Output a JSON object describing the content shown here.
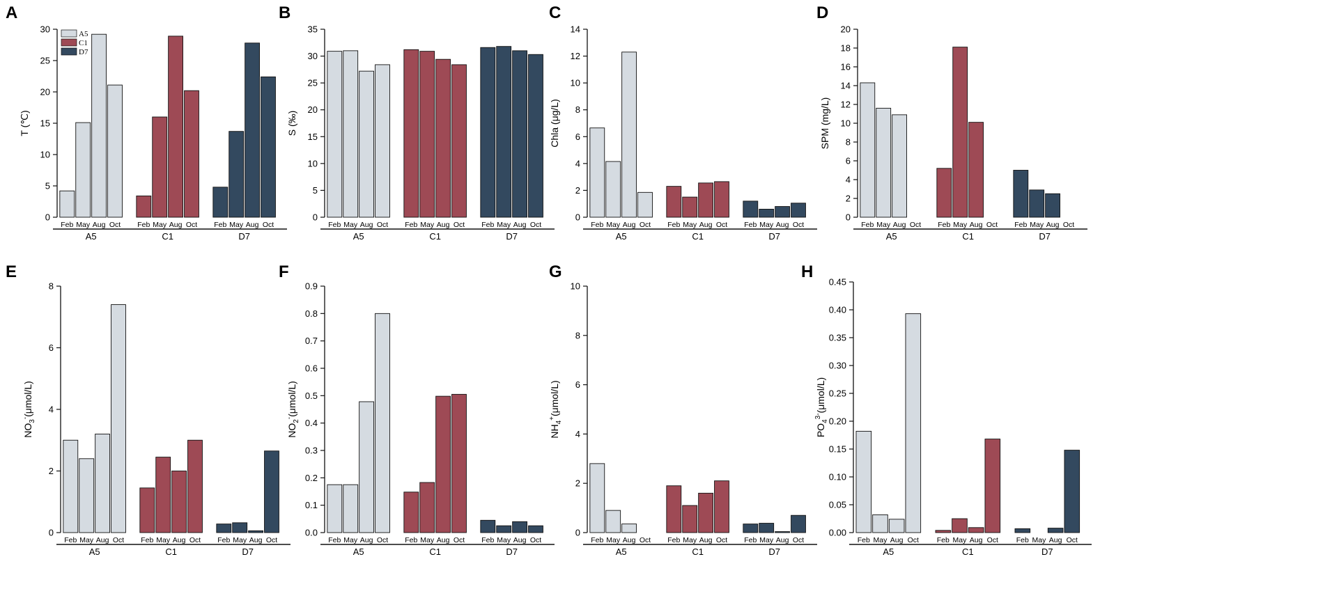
{
  "colors": {
    "A5": "#d5dbe1",
    "C1": "#9e4a55",
    "D7": "#33495f",
    "stroke": "#111111"
  },
  "legend": [
    "A5",
    "C1",
    "D7"
  ],
  "chart_data": [
    {
      "panel": "A",
      "type": "bar",
      "ylabel": "T (℃)",
      "ylim": [
        0,
        30
      ],
      "yticks": [
        "0",
        "5",
        "10",
        "15",
        "20",
        "25",
        "30"
      ],
      "tickvals": [
        0,
        5,
        10,
        15,
        20,
        25,
        30
      ],
      "categories": [
        "Feb",
        "May",
        "Aug",
        "Oct"
      ],
      "groups": [
        "A5",
        "C1",
        "D7"
      ],
      "legend": true,
      "series": [
        {
          "name": "A5",
          "values": [
            4.2,
            15.1,
            29.2,
            21.1
          ]
        },
        {
          "name": "C1",
          "values": [
            3.4,
            16.0,
            28.9,
            20.2
          ]
        },
        {
          "name": "D7",
          "values": [
            4.8,
            13.7,
            27.8,
            22.4
          ]
        }
      ]
    },
    {
      "panel": "B",
      "type": "bar",
      "ylabel": "S (‰)",
      "ylim": [
        0,
        35
      ],
      "yticks": [
        "0",
        "5",
        "10",
        "15",
        "20",
        "25",
        "30",
        "35"
      ],
      "tickvals": [
        0,
        5,
        10,
        15,
        20,
        25,
        30,
        35
      ],
      "categories": [
        "Feb",
        "May",
        "Aug",
        "Oct"
      ],
      "groups": [
        "A5",
        "C1",
        "D7"
      ],
      "series": [
        {
          "name": "A5",
          "values": [
            30.9,
            31.0,
            27.2,
            28.4
          ]
        },
        {
          "name": "C1",
          "values": [
            31.2,
            30.9,
            29.4,
            28.4
          ]
        },
        {
          "name": "D7",
          "values": [
            31.6,
            31.8,
            31.0,
            30.3
          ]
        }
      ]
    },
    {
      "panel": "C",
      "type": "bar",
      "ylabel": "Chla (μg/L)",
      "ylim": [
        0,
        14
      ],
      "yticks": [
        "0",
        "2",
        "4",
        "6",
        "8",
        "10",
        "12",
        "14"
      ],
      "tickvals": [
        0,
        2,
        4,
        6,
        8,
        10,
        12,
        14
      ],
      "categories": [
        "Feb",
        "May",
        "Aug",
        "Oct"
      ],
      "groups": [
        "A5",
        "C1",
        "D7"
      ],
      "series": [
        {
          "name": "A5",
          "values": [
            6.65,
            4.15,
            12.3,
            1.85
          ]
        },
        {
          "name": "C1",
          "values": [
            2.3,
            1.5,
            2.55,
            2.65
          ]
        },
        {
          "name": "D7",
          "values": [
            1.2,
            0.6,
            0.8,
            1.05
          ]
        }
      ]
    },
    {
      "panel": "D",
      "type": "bar",
      "ylabel": "SPM (mg/L)",
      "ylim": [
        0,
        20
      ],
      "yticks": [
        "0",
        "2",
        "4",
        "6",
        "8",
        "10",
        "12",
        "14",
        "16",
        "18",
        "20"
      ],
      "tickvals": [
        0,
        2,
        4,
        6,
        8,
        10,
        12,
        14,
        16,
        18,
        20
      ],
      "categories": [
        "Feb",
        "May",
        "Aug",
        "Oct"
      ],
      "groups": [
        "A5",
        "C1",
        "D7"
      ],
      "series": [
        {
          "name": "A5",
          "values": [
            14.3,
            11.6,
            10.9,
            0
          ]
        },
        {
          "name": "C1",
          "values": [
            5.2,
            18.1,
            10.1,
            0
          ]
        },
        {
          "name": "D7",
          "values": [
            5.0,
            2.9,
            2.5,
            0
          ]
        }
      ]
    },
    {
      "panel": "E",
      "type": "bar",
      "ylabel": "NO3-(μmol/L)",
      "ylabel_parts": [
        "NO",
        "3",
        "-",
        "(μmol/L)"
      ],
      "ylim": [
        0,
        8
      ],
      "yticks": [
        "0",
        "2",
        "4",
        "6",
        "8"
      ],
      "tickvals": [
        0,
        2,
        4,
        6,
        8
      ],
      "categories": [
        "Feb",
        "May",
        "Aug",
        "Oct"
      ],
      "groups": [
        "A5",
        "C1",
        "D7"
      ],
      "series": [
        {
          "name": "A5",
          "values": [
            3.0,
            2.4,
            3.2,
            7.4
          ]
        },
        {
          "name": "C1",
          "values": [
            1.45,
            2.45,
            2.0,
            3.0
          ]
        },
        {
          "name": "D7",
          "values": [
            0.28,
            0.32,
            0.06,
            2.65
          ]
        }
      ]
    },
    {
      "panel": "F",
      "type": "bar",
      "ylabel": "NO2-(μmol/L)",
      "ylabel_parts": [
        "NO",
        "2",
        "-",
        "(μmol/L)"
      ],
      "ylim": [
        0,
        0.9
      ],
      "yticks": [
        "0.0",
        "0.1",
        "0.2",
        "0.3",
        "0.4",
        "0.5",
        "0.6",
        "0.7",
        "0.8",
        "0.9"
      ],
      "tickvals": [
        0,
        0.1,
        0.2,
        0.3,
        0.4,
        0.5,
        0.6,
        0.7,
        0.8,
        0.9
      ],
      "categories": [
        "Feb",
        "May",
        "Aug",
        "Oct"
      ],
      "groups": [
        "A5",
        "C1",
        "D7"
      ],
      "series": [
        {
          "name": "A5",
          "values": [
            0.175,
            0.175,
            0.478,
            0.8
          ]
        },
        {
          "name": "C1",
          "values": [
            0.148,
            0.183,
            0.498,
            0.505
          ]
        },
        {
          "name": "D7",
          "values": [
            0.045,
            0.025,
            0.04,
            0.025
          ]
        }
      ]
    },
    {
      "panel": "G",
      "type": "bar",
      "ylabel": "NH4+(μmol/L)",
      "ylabel_parts": [
        "NH",
        "4",
        "+",
        "(μmol/L)"
      ],
      "ylim": [
        0,
        10
      ],
      "yticks": [
        "0",
        "2",
        "4",
        "6",
        "8",
        "10"
      ],
      "tickvals": [
        0,
        2,
        4,
        6,
        8,
        10
      ],
      "categories": [
        "Feb",
        "May",
        "Aug",
        "Oct"
      ],
      "groups": [
        "A5",
        "C1",
        "D7"
      ],
      "series": [
        {
          "name": "A5",
          "values": [
            2.8,
            0.9,
            0.35,
            0
          ]
        },
        {
          "name": "C1",
          "values": [
            1.9,
            1.1,
            1.6,
            2.1
          ]
        },
        {
          "name": "D7",
          "values": [
            0.35,
            0.38,
            0.04,
            0.7
          ]
        }
      ]
    },
    {
      "panel": "H",
      "type": "bar",
      "ylabel": "PO43-(μmol/L)",
      "ylabel_parts": [
        "PO",
        "4",
        "3-",
        "(μmol/L)"
      ],
      "ylim": [
        0,
        0.45
      ],
      "yticks": [
        "0.00",
        "0.05",
        "0.10",
        "0.15",
        "0.20",
        "0.25",
        "0.30",
        "0.35",
        "0.40",
        "0.45"
      ],
      "tickvals": [
        0,
        0.05,
        0.1,
        0.15,
        0.2,
        0.25,
        0.3,
        0.35,
        0.4,
        0.45
      ],
      "categories": [
        "Feb",
        "May",
        "Aug",
        "Oct"
      ],
      "groups": [
        "A5",
        "C1",
        "D7"
      ],
      "series": [
        {
          "name": "A5",
          "values": [
            0.182,
            0.032,
            0.024,
            0.393
          ]
        },
        {
          "name": "C1",
          "values": [
            0.004,
            0.025,
            0.009,
            0.168
          ]
        },
        {
          "name": "D7",
          "values": [
            0.007,
            0.0,
            0.008,
            0.148
          ]
        }
      ]
    }
  ]
}
